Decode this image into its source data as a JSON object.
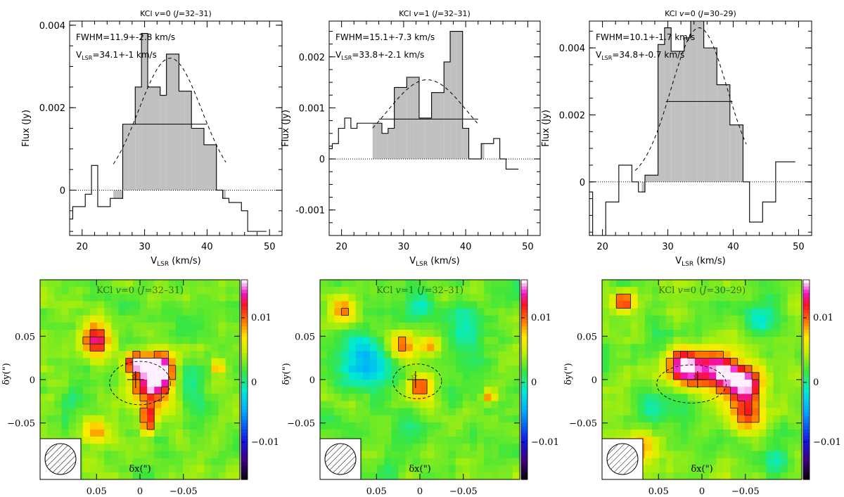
{
  "figure": {
    "layout": "2 rows x 3 columns",
    "top_row": "spectra",
    "bottom_row": "emission maps"
  },
  "chart_data": [
    {
      "type": "line",
      "drawstyle": "steps-mid",
      "title": "KCl v=0 (J=32–31)",
      "xlabel": "VLSR (km/s)",
      "ylabel": "Flux (Jy)",
      "xlim": [
        18,
        52
      ],
      "ylim": [
        -0.0011,
        0.0041
      ],
      "xticks": [
        20,
        30,
        40,
        50
      ],
      "xtick_labels": [
        "20",
        "30",
        "40",
        "50"
      ],
      "yticks": [
        0,
        0.002,
        0.004
      ],
      "ytick_labels": [
        "0",
        "0.002",
        "0.004"
      ],
      "x": [
        18,
        19,
        20,
        21,
        22,
        23,
        24,
        25,
        26,
        27,
        28,
        29,
        30,
        31,
        32,
        33,
        34,
        35,
        36,
        37,
        38,
        39,
        40,
        41,
        42,
        43,
        44,
        45,
        46,
        47,
        48,
        49
      ],
      "y": [
        -0.0007,
        -0.0004,
        -0.0004,
        -0.0001,
        0.0006,
        -0.0004,
        -0.0004,
        -0.0002,
        -0.0002,
        0.0016,
        0.0016,
        0.0025,
        0.0038,
        0.0025,
        0.0025,
        0.0023,
        0.0033,
        0.0033,
        0.0024,
        0.0024,
        0.0015,
        0.0015,
        0.0011,
        0.0011,
        0,
        -0.0002,
        -0.0003,
        -0.0003,
        -0.0005,
        -0.001,
        -0.001,
        -0.001
      ],
      "shade_range": [
        25,
        43
      ],
      "gaussian": {
        "center": 34.1,
        "fwhm": 11.9,
        "amplitude": 0.0032,
        "x_range": [
          25,
          43
        ]
      },
      "fwhm_line": {
        "x1": 28,
        "x2": 40,
        "y": 0.0016
      },
      "zero_line": {
        "y": 0,
        "style": "dotted"
      },
      "annotations": {
        "fwhm": "FWHM=11.9+-2.8 km/s",
        "vlsr_label": "V",
        "vlsr_sub": "LSR",
        "vlsr_val": "=34.1+-1 km/s"
      }
    },
    {
      "type": "line",
      "drawstyle": "steps-mid",
      "title": "KCl v=1 (J=32–31)",
      "xlabel": "VLSR (km/s)",
      "ylabel": "Flux (Jy)",
      "xlim": [
        18,
        52
      ],
      "ylim": [
        -0.0015,
        0.0027
      ],
      "xticks": [
        20,
        30,
        40,
        50
      ],
      "xtick_labels": [
        "20",
        "30",
        "40",
        "50"
      ],
      "yticks": [
        -0.001,
        0,
        0.001,
        0.002
      ],
      "ytick_labels": [
        "-0.001",
        "0",
        "0.001",
        "0.002"
      ],
      "x": [
        18,
        19,
        20,
        21,
        22,
        23,
        24,
        25,
        26,
        27,
        28,
        29,
        30,
        31,
        32,
        33,
        34,
        35,
        36,
        37,
        38,
        39,
        40,
        41,
        42,
        43,
        44,
        45,
        46,
        47,
        48
      ],
      "y": [
        0.0002,
        0.0003,
        0.0006,
        0.0008,
        0.0006,
        0.0007,
        0.0007,
        0.0007,
        0.0007,
        0.0005,
        0.0006,
        0.0014,
        0.0014,
        0.0016,
        0.0016,
        0.0008,
        0.0008,
        0.0013,
        0.0013,
        0.0019,
        0.0025,
        0.0025,
        0.0006,
        0,
        0,
        0.0003,
        0.0003,
        0.0004,
        0,
        -0.0002,
        -0.0002
      ],
      "shade_range": [
        25,
        43
      ],
      "gaussian": {
        "center": 33.8,
        "fwhm": 15.1,
        "amplitude": 0.00155,
        "x_range": [
          25,
          42
        ]
      },
      "fwhm_line": {
        "x1": 26,
        "x2": 42,
        "y": 0.00078
      },
      "zero_line": {
        "y": 0,
        "style": "dotted"
      },
      "annotations": {
        "fwhm": "FWHM=15.1+-7.3 km/s",
        "vlsr_label": "V",
        "vlsr_sub": "LSR",
        "vlsr_val": "=33.8+-2.1 km/s"
      }
    },
    {
      "type": "line",
      "drawstyle": "steps-mid",
      "title": "KCl v=0 (J=30–29)",
      "xlabel": "VLSR (km/s)",
      "ylabel": "Flux (Jy)",
      "xlim": [
        18,
        52
      ],
      "ylim": [
        -0.0016,
        0.0048
      ],
      "xticks": [
        20,
        30,
        40,
        50
      ],
      "xtick_labels": [
        "20",
        "30",
        "40",
        "50"
      ],
      "yticks": [
        0,
        0.002,
        0.004
      ],
      "ytick_labels": [
        "0",
        "0.002",
        "0.004"
      ],
      "x": [
        18,
        19,
        20,
        21,
        22,
        23,
        24,
        25,
        26,
        27,
        28,
        29,
        30,
        31,
        32,
        33,
        34,
        35,
        36,
        37,
        38,
        39,
        40,
        41,
        42,
        43,
        44,
        45,
        46,
        47,
        48,
        49
      ],
      "y": [
        -0.0003,
        -0.0016,
        -0.0016,
        -0.0006,
        -0.0006,
        0.0005,
        0.0005,
        0.0,
        -0.0003,
        0.0002,
        0.0002,
        0.0041,
        0.0046,
        0.0039,
        0.0039,
        0.0043,
        0.0048,
        0.0048,
        0.004,
        0.004,
        0.0029,
        0.0029,
        0.0017,
        0.0017,
        0.0,
        -0.0012,
        -0.0012,
        -0.0006,
        -0.0006,
        0.0006,
        0.0006,
        0.0006
      ],
      "shade_range": [
        26,
        42
      ],
      "gaussian": {
        "center": 34.8,
        "fwhm": 10.1,
        "amplitude": 0.0046,
        "x_range": [
          25,
          42
        ]
      },
      "fwhm_line": {
        "x1": 29.7,
        "x2": 39.9,
        "y": 0.0024
      },
      "zero_line": {
        "y": 0,
        "style": "dotted"
      },
      "annotations": {
        "fwhm": "FWHM=10.1+-1.7 km/s",
        "vlsr_label": "V",
        "vlsr_sub": "LSR",
        "vlsr_val": "=34.8+-0.7 km/s"
      }
    },
    {
      "type": "heatmap",
      "title": "KCl v=0 (J=32–31)",
      "xlabel": "δx(\")",
      "ylabel": "δy(\")",
      "xticks": [
        0.05,
        0,
        -0.05
      ],
      "xtick_labels": [
        "0.05",
        "0",
        "−0.05"
      ],
      "yticks": [
        0.05,
        0,
        -0.05
      ],
      "ytick_labels": [
        "0.05",
        "0",
        "−0.05"
      ],
      "colorbar_ticks": [
        "0.01",
        "0",
        "−0.01"
      ],
      "colormap": "rainbow",
      "seed": 3,
      "hotspots": [
        [
          -0.015,
          -0.008,
          0.022,
          0.013
        ],
        [
          -0.02,
          0.015,
          0.018,
          0.014
        ],
        [
          0.05,
          0.045,
          0.018,
          0.011
        ],
        [
          0.005,
          0.02,
          0.012,
          0.011
        ],
        [
          -0.01,
          -0.055,
          0.01,
          0.009
        ],
        [
          0.05,
          -0.06,
          0.015,
          0.007
        ],
        [
          -0.09,
          0.015,
          0.008,
          0.008
        ],
        [
          -0.01,
          -0.04,
          0.01,
          0.008
        ]
      ],
      "coldspots": [
        [
          -0.06,
          -0.01,
          0.02,
          -0.004
        ],
        [
          0.08,
          -0.02,
          0.015,
          -0.003
        ]
      ],
      "contour_levels": [
        0.0085,
        0.012
      ],
      "ellipse": {
        "cx": 0.0,
        "cy": -0.004,
        "rx": 0.035,
        "ry": 0.025
      }
    },
    {
      "type": "heatmap",
      "title": "KCl v=1 (J=32–31)",
      "xlabel": "δx(\")",
      "ylabel": "δy(\")",
      "xticks": [
        0.05,
        0,
        -0.05
      ],
      "xtick_labels": [
        "0.05",
        "0",
        "−0.05"
      ],
      "yticks": [
        0.05,
        0,
        -0.05
      ],
      "ytick_labels": [
        "0.05",
        "0",
        "−0.05"
      ],
      "colorbar_ticks": [
        "0.01",
        "0",
        "−0.01"
      ],
      "colormap": "rainbow",
      "seed": 7,
      "hotspots": [
        [
          0.02,
          0.04,
          0.016,
          0.009
        ],
        [
          0.0,
          -0.01,
          0.014,
          0.01
        ],
        [
          -0.01,
          0.04,
          0.01,
          0.007
        ],
        [
          -0.08,
          -0.02,
          0.008,
          0.008
        ],
        [
          0.09,
          0.08,
          0.015,
          0.007
        ]
      ],
      "coldspots": [
        [
          0.065,
          0.02,
          0.03,
          -0.007
        ],
        [
          0.0,
          0.085,
          0.015,
          -0.004
        ],
        [
          -0.05,
          0.06,
          0.025,
          -0.004
        ],
        [
          0.01,
          -0.06,
          0.02,
          -0.003
        ]
      ],
      "contour_levels": [
        0.0085
      ],
      "ellipse": {
        "cx": 0.003,
        "cy": -0.002,
        "rx": 0.028,
        "ry": 0.02
      }
    },
    {
      "type": "heatmap",
      "title": "KCl v=0 (J=30–29)",
      "xlabel": "δx(\")",
      "ylabel": "δy(\")",
      "xticks": [
        0.05,
        0,
        -0.05
      ],
      "xtick_labels": [
        "0.05",
        "0",
        "−0.05"
      ],
      "yticks": [
        0.05,
        0,
        -0.05
      ],
      "ytick_labels": [
        "0.05",
        "0",
        "−0.05"
      ],
      "colorbar_ticks": [
        "0.01",
        "0",
        "−0.01"
      ],
      "colormap": "rainbow",
      "seed": 11,
      "hotspots": [
        [
          0.02,
          0.015,
          0.02,
          0.015
        ],
        [
          -0.02,
          0.01,
          0.025,
          0.013
        ],
        [
          -0.05,
          -0.005,
          0.02,
          0.013
        ],
        [
          0.09,
          0.09,
          0.012,
          0.01
        ],
        [
          -0.05,
          -0.04,
          0.02,
          0.008
        ],
        [
          0.07,
          -0.08,
          0.02,
          0.007
        ]
      ],
      "coldspots": [
        [
          -0.07,
          0.07,
          0.02,
          -0.004
        ],
        [
          0.055,
          -0.035,
          0.02,
          -0.004
        ],
        [
          -0.085,
          -0.09,
          0.015,
          -0.004
        ]
      ],
      "contour_levels": [
        0.0085,
        0.0115
      ],
      "ellipse": {
        "cx": 0.012,
        "cy": -0.005,
        "rx": 0.04,
        "ry": 0.022
      }
    }
  ]
}
